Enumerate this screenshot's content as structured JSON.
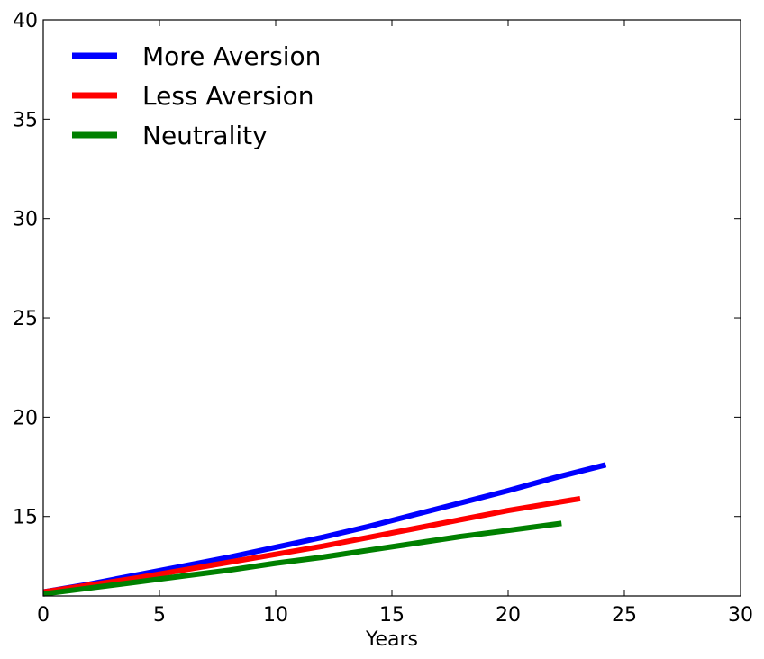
{
  "chart_data": {
    "type": "line",
    "xlabel": "Years",
    "ylabel": "",
    "xlim": [
      0,
      30
    ],
    "ylim": [
      11,
      40
    ],
    "xticks": [
      0,
      5,
      10,
      15,
      20,
      25,
      30
    ],
    "yticks": [
      15,
      20,
      25,
      30,
      35,
      40
    ],
    "xtick_labels": [
      "0",
      "5",
      "10",
      "15",
      "20",
      "25",
      "30"
    ],
    "ytick_labels": [
      "15",
      "20",
      "25",
      "30",
      "35",
      "40"
    ],
    "grid": false,
    "legend_position": "top-left",
    "series": [
      {
        "name": "More Aversion",
        "color": "#0000ff",
        "x": [
          0,
          2,
          4,
          6,
          8,
          10,
          12,
          14,
          16,
          18,
          20,
          22,
          24.2
        ],
        "y": [
          11.2,
          11.6,
          12.05,
          12.5,
          12.95,
          13.45,
          13.95,
          14.5,
          15.1,
          15.7,
          16.3,
          16.95,
          17.6
        ]
      },
      {
        "name": "Less Aversion",
        "color": "#ff0000",
        "x": [
          0,
          2,
          4,
          6,
          8,
          10,
          12,
          14,
          16,
          18,
          20,
          23.1
        ],
        "y": [
          11.2,
          11.55,
          11.9,
          12.3,
          12.7,
          13.1,
          13.5,
          13.95,
          14.4,
          14.85,
          15.3,
          15.9
        ]
      },
      {
        "name": "Neutrality",
        "color": "#008000",
        "x": [
          0,
          2,
          4,
          6,
          8,
          10,
          12,
          14,
          16,
          18,
          20,
          22.3
        ],
        "y": [
          11.1,
          11.4,
          11.7,
          12.0,
          12.3,
          12.65,
          12.95,
          13.3,
          13.65,
          14.0,
          14.3,
          14.65
        ]
      }
    ]
  }
}
